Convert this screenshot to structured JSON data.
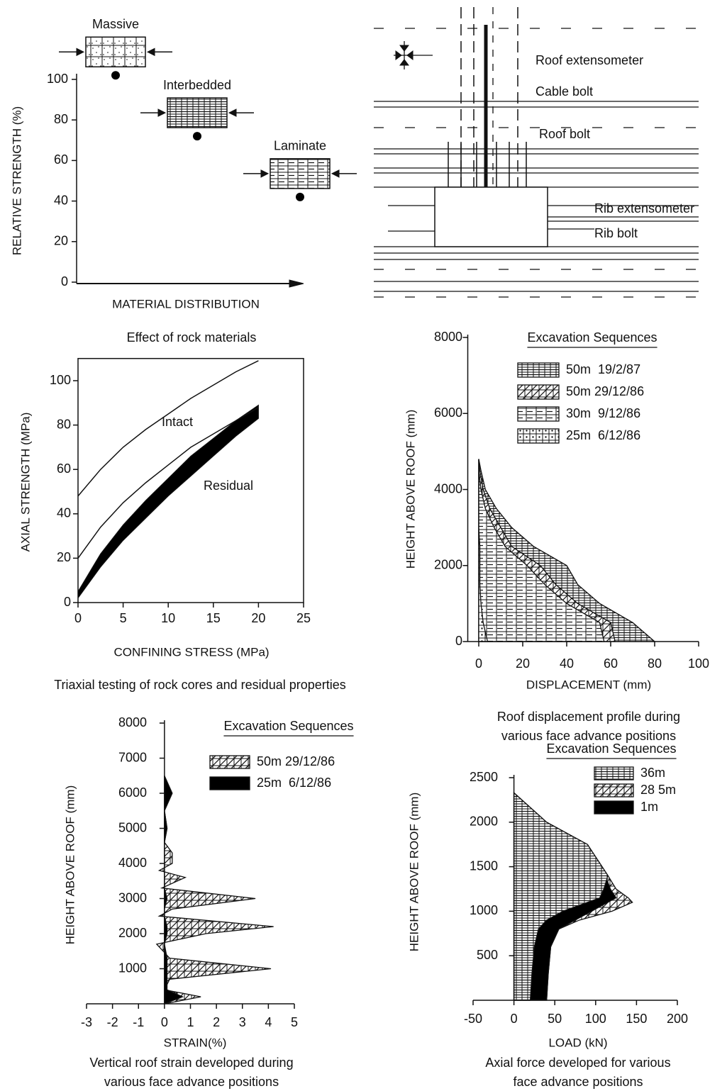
{
  "chart_data": [
    {
      "type": "dot",
      "caption": [
        "Effect of rock materials"
      ],
      "ylabel": "RELATIVE STRENGTH (%)",
      "xlabel": "MATERIAL DISTRIBUTION",
      "categories": [
        "Massive",
        "Interbedded",
        "Laminate"
      ],
      "values": [
        102,
        72,
        42
      ],
      "color": "#000000",
      "ylim": [
        0,
        100
      ],
      "yticks": [
        0,
        20,
        40,
        60,
        80,
        100
      ]
    },
    {
      "type": "line",
      "caption": [
        "Triaxial testing of rock cores and residual properties"
      ],
      "ylabel": "AXIAL STRENGTH (MPa)",
      "xlabel": "CONFINING STRESS (MPa)",
      "annotations": [
        "Intact",
        "Residual"
      ],
      "x": [
        0,
        2.5,
        5,
        7.5,
        10,
        12.5,
        15,
        17.5,
        20
      ],
      "series": [
        {
          "color": "#000000",
          "values": [
            48,
            60,
            70,
            78,
            85,
            92,
            98,
            104,
            109
          ]
        },
        {
          "color": "#000000",
          "values": [
            20,
            34,
            45,
            54,
            62,
            70,
            76,
            82,
            88
          ]
        }
      ],
      "band": {
        "color": "#000000",
        "upper": [
          5,
          22,
          35,
          46,
          56,
          66,
          74,
          82,
          89
        ],
        "lower": [
          2,
          16,
          28,
          38,
          48,
          57,
          66,
          75,
          83
        ]
      },
      "xlim": [
        0,
        25
      ],
      "xticks": [
        0,
        5,
        10,
        15,
        20,
        25
      ],
      "ylim": [
        0,
        110
      ],
      "yticks": [
        0,
        20,
        40,
        60,
        80,
        100
      ]
    },
    {
      "type": "profile",
      "caption": [
        "Roof displacement profile during",
        "various face advance positions"
      ],
      "ylabel": "HEIGHT ABOVE ROOF (mm)",
      "xlabel": "DISPLACEMENT (mm)",
      "legend_title": "Excavation Sequences",
      "y": [
        0,
        500,
        1000,
        1500,
        2000,
        2500,
        3000,
        3500,
        4000,
        4500,
        4800
      ],
      "series": [
        {
          "name": "50m  19/2/87",
          "fill": "horizontal-hatch",
          "values": [
            80,
            70,
            55,
            45,
            40,
            25,
            15,
            8,
            3,
            1,
            0
          ]
        },
        {
          "name": "50m 29/12/86",
          "fill": "diagonal-hatch",
          "values": [
            62,
            60,
            45,
            35,
            28,
            15,
            10,
            5,
            2,
            0.5,
            0
          ]
        },
        {
          "name": "30m  9/12/86",
          "fill": "dashed",
          "values": [
            57,
            55,
            40,
            30,
            22,
            12,
            7,
            3,
            1,
            0,
            0
          ]
        },
        {
          "name": "25m  6/12/86",
          "fill": "dotted",
          "values": [
            4,
            2,
            1,
            0.5,
            0.5,
            0.5,
            0,
            0,
            0,
            0,
            0
          ]
        }
      ],
      "xlim": [
        -5,
        100
      ],
      "xticks": [
        0,
        20,
        40,
        60,
        80,
        100
      ],
      "ylim": [
        0,
        8000
      ],
      "yticks": [
        0,
        2000,
        4000,
        6000,
        8000
      ]
    },
    {
      "type": "profile",
      "caption": [
        "Vertical roof strain developed during",
        "various face advance positions"
      ],
      "ylabel": "HEIGHT ABOVE ROOF (mm)",
      "xlabel": "STRAIN(%)",
      "legend_title": "Excavation Sequences",
      "y": [
        0,
        200,
        400,
        700,
        1000,
        1300,
        1700,
        2000,
        2200,
        2500,
        2700,
        3000,
        3300,
        3600,
        3800,
        4000,
        4300,
        4600,
        5000,
        5500,
        6000,
        6500
      ],
      "series": [
        {
          "name": "50m 29/12/86",
          "fill": "diagonal-hatch",
          "values": [
            0,
            1.4,
            0,
            0.2,
            4.1,
            0.2,
            -0.3,
            1.6,
            4.2,
            -0.2,
            0.3,
            3.5,
            -0.1,
            0.8,
            -0.2,
            0.3,
            0.3,
            0,
            0.1,
            0,
            0.2,
            0
          ]
        },
        {
          "name": "25m  6/12/86",
          "fill": "solid",
          "values": [
            0,
            0.7,
            0.1,
            0.1,
            0.1,
            0.1,
            0,
            0.1,
            0.1,
            0,
            0,
            0.1,
            0,
            0,
            0,
            0,
            0,
            0,
            0.1,
            0,
            0.3,
            0
          ]
        }
      ],
      "xlim": [
        -3,
        5
      ],
      "xticks": [
        -3,
        -2,
        -1,
        0,
        1,
        2,
        3,
        4,
        5
      ],
      "ylim": [
        0,
        8000
      ],
      "yticks": [
        1000,
        2000,
        3000,
        4000,
        5000,
        6000,
        7000,
        8000
      ]
    },
    {
      "type": "profile",
      "caption": [
        "Axial force developed for various",
        "face advance positions"
      ],
      "ylabel": "HEIGHT ABOVE ROOF (mm)",
      "xlabel": "LOAD (kN)",
      "legend_title": "Excavation Sequences",
      "y": [
        0,
        300,
        600,
        800,
        900,
        1000,
        1100,
        1150,
        1250,
        1400,
        1750,
        2000,
        2330
      ],
      "series": [
        {
          "name": "36m",
          "fill": "horizontal-hatch",
          "values": [
            20,
            22,
            25,
            30,
            40,
            60,
            90,
            105,
            110,
            115,
            90,
            40,
            0
          ]
        },
        {
          "name": "28 5m",
          "fill": "diagonal-hatch",
          "values": [
            40,
            42,
            45,
            55,
            80,
            120,
            145,
            140,
            125,
            115,
            90,
            40,
            0
          ]
        },
        {
          "name": "1m",
          "fill": "solid",
          "values": [
            40,
            42,
            45,
            55,
            75,
            95,
            115,
            125,
            118,
            112,
            88,
            38,
            0
          ]
        }
      ],
      "xlim": [
        -50,
        200
      ],
      "xticks": [
        -50,
        0,
        50,
        100,
        150,
        200
      ],
      "ylim": [
        0,
        2500
      ],
      "yticks": [
        500,
        1000,
        1500,
        2000,
        2500
      ]
    }
  ],
  "diagram": {
    "labels": [
      "Roof extensometer",
      "Cable bolt",
      "Roof bolt",
      "Rib extensometer",
      "Rib bolt"
    ]
  }
}
